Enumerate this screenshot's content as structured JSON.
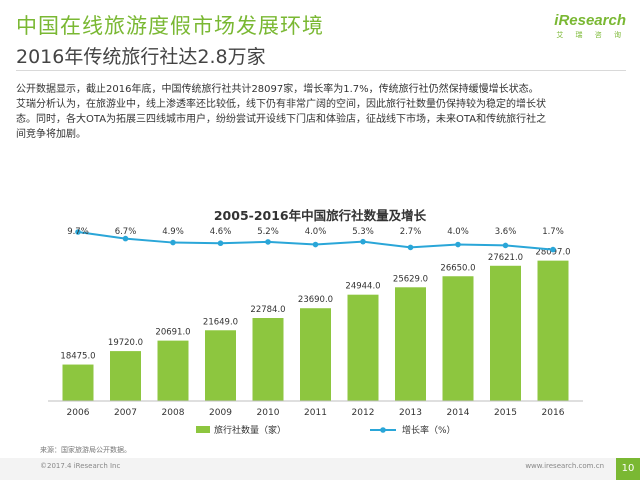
{
  "header": {
    "title": "中国在线旅游度假市场发展环境",
    "subtitle": "2016年传统旅行社达2.8万家",
    "logo_text": "iResearch",
    "logo_sub": "艾 瑞 咨 询"
  },
  "intro_lines": [
    "公开数据显示，截止2016年底，中国传统旅行社共计28097家，增长率为1.7%，传统旅行社仍然保持缓慢增长状态。",
    "艾瑞分析认为，在旅游业中，线上渗透率还比较低，线下仍有非常广阔的空间，因此旅行社数量仍保持较为稳定的增长状",
    "态。同时，各大OTA为拓展三四线城市用户，纷纷尝试开设线下门店和体验店，征战线下市场，未来OTA和传统旅行社之",
    "间竞争将加剧。"
  ],
  "chart_data": {
    "type": "bar",
    "title": "2005-2016年中国旅行社数量及增长",
    "categories": [
      "2006",
      "2007",
      "2008",
      "2009",
      "2010",
      "2011",
      "2012",
      "2013",
      "2014",
      "2015",
      "2016"
    ],
    "series": [
      {
        "name": "旅行社数量（家）",
        "type": "bar",
        "color": "#8dc63f",
        "values": [
          18475.0,
          19720.0,
          20691.0,
          21649.0,
          22784.0,
          23690.0,
          24944.0,
          25629.0,
          26650.0,
          27621.0,
          28097.0
        ],
        "labels": [
          "18475.0",
          "19720.0",
          "20691.0",
          "21649.0",
          "22784.0",
          "23690.0",
          "24944.0",
          "25629.0",
          "26650.0",
          "27621.0",
          "28097.0"
        ]
      },
      {
        "name": "增长率（%）",
        "type": "line",
        "color": "#2aa6d8",
        "values": [
          9.7,
          6.7,
          4.9,
          4.6,
          5.2,
          4.0,
          5.3,
          2.7,
          4.0,
          3.6,
          1.7
        ],
        "labels": [
          "9.7%",
          "6.7%",
          "4.9%",
          "4.6%",
          "5.2%",
          "4.0%",
          "5.3%",
          "2.7%",
          "4.0%",
          "3.6%",
          "1.7%"
        ]
      }
    ],
    "legend_position": "bottom"
  },
  "source": "来源：国家旅游局公开数据。",
  "footer": {
    "copyright": "©2017.4 iResearch Inc",
    "website": "www.iresearch.com.cn",
    "page": "10"
  }
}
